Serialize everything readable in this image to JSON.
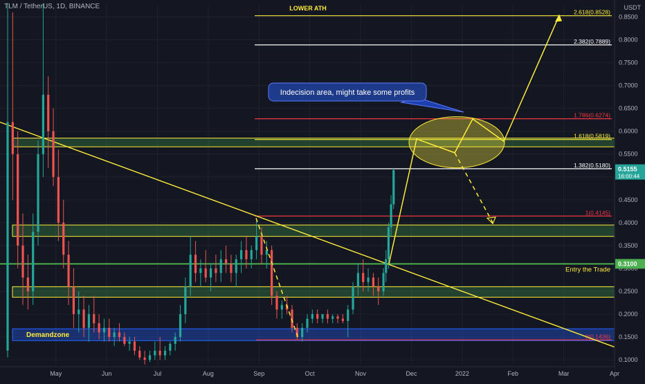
{
  "symbol": "TLM / TetherUS, 1D, BINANCE",
  "axis_unit": "USDT",
  "chart_data": {
    "type": "candlestick",
    "price_ticks": [
      0.85,
      0.8,
      0.75,
      0.7,
      0.65,
      0.6,
      0.55,
      0.5,
      0.45,
      0.4,
      0.35,
      0.3,
      0.25,
      0.2,
      0.15,
      0.1
    ],
    "price_tick_labels": [
      "0.8500",
      "0.8000",
      "0.7500",
      "0.7000",
      "0.6500",
      "0.6000",
      "0.5500",
      "0.5000",
      "0.4500",
      "0.4000",
      "0.3500",
      "0.3000",
      "0.2500",
      "0.2000",
      "0.1500",
      "0.1000"
    ],
    "ylim": [
      0.085,
      0.875
    ],
    "date_labels": [
      "May",
      "Jun",
      "Jul",
      "Aug",
      "Sep",
      "Oct",
      "Nov",
      "Dec",
      "2022",
      "Feb",
      "Mar",
      "Apr"
    ],
    "date_positions": [
      1.5,
      2.5,
      3.5,
      4.5,
      5.5,
      6.5,
      7.5,
      8.5,
      9.5,
      10.5,
      11.5,
      12.5
    ],
    "xlim": [
      0.4,
      12.5
    ],
    "last_price": "0.5155",
    "countdown": "16:00:44",
    "entry_label_price": "0.3100",
    "fib_levels": [
      {
        "label": "2.618(0.8528)",
        "value": 0.8528,
        "color": "#ffeb3b"
      },
      {
        "label": "2.382(0.7889)",
        "value": 0.7889,
        "color": "#ffffff"
      },
      {
        "label": "1.786(0.6274)",
        "value": 0.6274,
        "color": "#f23645"
      },
      {
        "label": "1.618(0.5819)",
        "value": 0.5819,
        "color": "#ffeb3b"
      },
      {
        "label": "1.382(0.5180)",
        "value": 0.518,
        "color": "#ffffff"
      },
      {
        "label": "1(0.4145)",
        "value": 0.4145,
        "color": "#f23645"
      },
      {
        "label": "0(0.1436)",
        "value": 0.1436,
        "color": "#f23645"
      }
    ],
    "zones": [
      {
        "low": 0.566,
        "high": 0.585,
        "color": "#ffeb3b"
      },
      {
        "low": 0.37,
        "high": 0.395,
        "color": "#ffeb3b"
      },
      {
        "low": 0.237,
        "high": 0.26,
        "color": "#ffeb3b"
      }
    ],
    "demand_zone": {
      "low": 0.142,
      "high": 0.168
    },
    "annotations": {
      "lower_ath": "LOWER ATH",
      "demandzone": "Demandzone",
      "entry": "Entry the Trade",
      "indecision": "Indecision area, might take some profits"
    },
    "candles": [
      {
        "t": 0.55,
        "o": 0.12,
        "h": 0.88,
        "l": 0.105,
        "c": 0.62
      },
      {
        "t": 0.65,
        "o": 0.62,
        "h": 0.86,
        "l": 0.45,
        "c": 0.55
      },
      {
        "t": 0.75,
        "o": 0.55,
        "h": 0.6,
        "l": 0.3,
        "c": 0.35
      },
      {
        "t": 0.85,
        "o": 0.35,
        "h": 0.42,
        "l": 0.22,
        "c": 0.28
      },
      {
        "t": 0.95,
        "o": 0.28,
        "h": 0.33,
        "l": 0.21,
        "c": 0.25
      },
      {
        "t": 1.05,
        "o": 0.25,
        "h": 0.42,
        "l": 0.22,
        "c": 0.38
      },
      {
        "t": 1.15,
        "o": 0.38,
        "h": 0.58,
        "l": 0.35,
        "c": 0.55
      },
      {
        "t": 1.25,
        "o": 0.55,
        "h": 0.88,
        "l": 0.5,
        "c": 0.68
      },
      {
        "t": 1.35,
        "o": 0.68,
        "h": 0.72,
        "l": 0.52,
        "c": 0.6
      },
      {
        "t": 1.45,
        "o": 0.6,
        "h": 0.65,
        "l": 0.48,
        "c": 0.5
      },
      {
        "t": 1.55,
        "o": 0.5,
        "h": 0.56,
        "l": 0.36,
        "c": 0.4
      },
      {
        "t": 1.65,
        "o": 0.4,
        "h": 0.45,
        "l": 0.3,
        "c": 0.33
      },
      {
        "t": 1.75,
        "o": 0.33,
        "h": 0.36,
        "l": 0.22,
        "c": 0.26
      },
      {
        "t": 1.85,
        "o": 0.26,
        "h": 0.3,
        "l": 0.17,
        "c": 0.2
      },
      {
        "t": 1.95,
        "o": 0.2,
        "h": 0.25,
        "l": 0.16,
        "c": 0.21
      },
      {
        "t": 2.05,
        "o": 0.21,
        "h": 0.24,
        "l": 0.15,
        "c": 0.17
      },
      {
        "t": 2.15,
        "o": 0.17,
        "h": 0.22,
        "l": 0.14,
        "c": 0.2
      },
      {
        "t": 2.25,
        "o": 0.2,
        "h": 0.24,
        "l": 0.16,
        "c": 0.18
      },
      {
        "t": 2.35,
        "o": 0.18,
        "h": 0.2,
        "l": 0.145,
        "c": 0.16
      },
      {
        "t": 2.45,
        "o": 0.16,
        "h": 0.19,
        "l": 0.14,
        "c": 0.17
      },
      {
        "t": 2.55,
        "o": 0.17,
        "h": 0.19,
        "l": 0.14,
        "c": 0.15
      },
      {
        "t": 2.65,
        "o": 0.15,
        "h": 0.17,
        "l": 0.13,
        "c": 0.16
      },
      {
        "t": 2.75,
        "o": 0.16,
        "h": 0.18,
        "l": 0.14,
        "c": 0.15
      },
      {
        "t": 2.85,
        "o": 0.15,
        "h": 0.16,
        "l": 0.13,
        "c": 0.135
      },
      {
        "t": 2.95,
        "o": 0.135,
        "h": 0.15,
        "l": 0.12,
        "c": 0.14
      },
      {
        "t": 3.05,
        "o": 0.14,
        "h": 0.15,
        "l": 0.11,
        "c": 0.12
      },
      {
        "t": 3.15,
        "o": 0.12,
        "h": 0.13,
        "l": 0.1,
        "c": 0.105
      },
      {
        "t": 3.25,
        "o": 0.105,
        "h": 0.12,
        "l": 0.09,
        "c": 0.1
      },
      {
        "t": 3.35,
        "o": 0.1,
        "h": 0.12,
        "l": 0.095,
        "c": 0.11
      },
      {
        "t": 3.45,
        "o": 0.11,
        "h": 0.14,
        "l": 0.1,
        "c": 0.12
      },
      {
        "t": 3.55,
        "o": 0.12,
        "h": 0.15,
        "l": 0.1,
        "c": 0.11
      },
      {
        "t": 3.65,
        "o": 0.11,
        "h": 0.13,
        "l": 0.1,
        "c": 0.12
      },
      {
        "t": 3.75,
        "o": 0.12,
        "h": 0.14,
        "l": 0.11,
        "c": 0.135
      },
      {
        "t": 3.85,
        "o": 0.135,
        "h": 0.16,
        "l": 0.12,
        "c": 0.15
      },
      {
        "t": 3.95,
        "o": 0.15,
        "h": 0.22,
        "l": 0.14,
        "c": 0.2
      },
      {
        "t": 4.05,
        "o": 0.2,
        "h": 0.28,
        "l": 0.18,
        "c": 0.26
      },
      {
        "t": 4.15,
        "o": 0.26,
        "h": 0.37,
        "l": 0.24,
        "c": 0.33
      },
      {
        "t": 4.25,
        "o": 0.33,
        "h": 0.36,
        "l": 0.27,
        "c": 0.29
      },
      {
        "t": 4.35,
        "o": 0.29,
        "h": 0.32,
        "l": 0.26,
        "c": 0.3
      },
      {
        "t": 4.45,
        "o": 0.3,
        "h": 0.34,
        "l": 0.27,
        "c": 0.28
      },
      {
        "t": 4.55,
        "o": 0.28,
        "h": 0.31,
        "l": 0.25,
        "c": 0.3
      },
      {
        "t": 4.65,
        "o": 0.3,
        "h": 0.33,
        "l": 0.27,
        "c": 0.29
      },
      {
        "t": 4.75,
        "o": 0.29,
        "h": 0.34,
        "l": 0.27,
        "c": 0.32
      },
      {
        "t": 4.85,
        "o": 0.32,
        "h": 0.35,
        "l": 0.29,
        "c": 0.31
      },
      {
        "t": 4.95,
        "o": 0.31,
        "h": 0.33,
        "l": 0.27,
        "c": 0.29
      },
      {
        "t": 5.05,
        "o": 0.29,
        "h": 0.33,
        "l": 0.26,
        "c": 0.32
      },
      {
        "t": 5.15,
        "o": 0.32,
        "h": 0.36,
        "l": 0.29,
        "c": 0.34
      },
      {
        "t": 5.25,
        "o": 0.34,
        "h": 0.37,
        "l": 0.3,
        "c": 0.32
      },
      {
        "t": 5.35,
        "o": 0.32,
        "h": 0.35,
        "l": 0.3,
        "c": 0.34
      },
      {
        "t": 5.45,
        "o": 0.34,
        "h": 0.41,
        "l": 0.32,
        "c": 0.37
      },
      {
        "t": 5.55,
        "o": 0.37,
        "h": 0.39,
        "l": 0.31,
        "c": 0.33
      },
      {
        "t": 5.65,
        "o": 0.33,
        "h": 0.36,
        "l": 0.3,
        "c": 0.34
      },
      {
        "t": 5.75,
        "o": 0.34,
        "h": 0.35,
        "l": 0.22,
        "c": 0.24
      },
      {
        "t": 5.85,
        "o": 0.24,
        "h": 0.25,
        "l": 0.19,
        "c": 0.21
      },
      {
        "t": 5.95,
        "o": 0.21,
        "h": 0.23,
        "l": 0.19,
        "c": 0.22
      },
      {
        "t": 6.05,
        "o": 0.22,
        "h": 0.24,
        "l": 0.2,
        "c": 0.21
      },
      {
        "t": 6.15,
        "o": 0.21,
        "h": 0.22,
        "l": 0.16,
        "c": 0.17
      },
      {
        "t": 6.25,
        "o": 0.17,
        "h": 0.18,
        "l": 0.145,
        "c": 0.15
      },
      {
        "t": 6.35,
        "o": 0.15,
        "h": 0.18,
        "l": 0.14,
        "c": 0.17
      },
      {
        "t": 6.45,
        "o": 0.17,
        "h": 0.2,
        "l": 0.16,
        "c": 0.19
      },
      {
        "t": 6.55,
        "o": 0.19,
        "h": 0.21,
        "l": 0.18,
        "c": 0.2
      },
      {
        "t": 6.65,
        "o": 0.2,
        "h": 0.21,
        "l": 0.18,
        "c": 0.19
      },
      {
        "t": 6.75,
        "o": 0.19,
        "h": 0.2,
        "l": 0.18,
        "c": 0.2
      },
      {
        "t": 6.85,
        "o": 0.2,
        "h": 0.21,
        "l": 0.18,
        "c": 0.19
      },
      {
        "t": 6.95,
        "o": 0.19,
        "h": 0.2,
        "l": 0.18,
        "c": 0.195
      },
      {
        "t": 7.05,
        "o": 0.195,
        "h": 0.2,
        "l": 0.18,
        "c": 0.19
      },
      {
        "t": 7.15,
        "o": 0.19,
        "h": 0.2,
        "l": 0.18,
        "c": 0.185
      },
      {
        "t": 7.25,
        "o": 0.185,
        "h": 0.22,
        "l": 0.15,
        "c": 0.21
      },
      {
        "t": 7.35,
        "o": 0.21,
        "h": 0.27,
        "l": 0.2,
        "c": 0.26
      },
      {
        "t": 7.45,
        "o": 0.26,
        "h": 0.31,
        "l": 0.24,
        "c": 0.29
      },
      {
        "t": 7.55,
        "o": 0.29,
        "h": 0.32,
        "l": 0.25,
        "c": 0.27
      },
      {
        "t": 7.65,
        "o": 0.27,
        "h": 0.3,
        "l": 0.25,
        "c": 0.28
      },
      {
        "t": 7.75,
        "o": 0.28,
        "h": 0.29,
        "l": 0.24,
        "c": 0.26
      },
      {
        "t": 7.85,
        "o": 0.26,
        "h": 0.28,
        "l": 0.22,
        "c": 0.25
      },
      {
        "t": 7.95,
        "o": 0.25,
        "h": 0.3,
        "l": 0.24,
        "c": 0.29
      },
      {
        "t": 8.0,
        "o": 0.29,
        "h": 0.34,
        "l": 0.27,
        "c": 0.32
      },
      {
        "t": 8.05,
        "o": 0.32,
        "h": 0.4,
        "l": 0.3,
        "c": 0.39
      },
      {
        "t": 8.1,
        "o": 0.39,
        "h": 0.46,
        "l": 0.37,
        "c": 0.44
      },
      {
        "t": 8.15,
        "o": 0.44,
        "h": 0.52,
        "l": 0.43,
        "c": 0.515
      }
    ]
  }
}
